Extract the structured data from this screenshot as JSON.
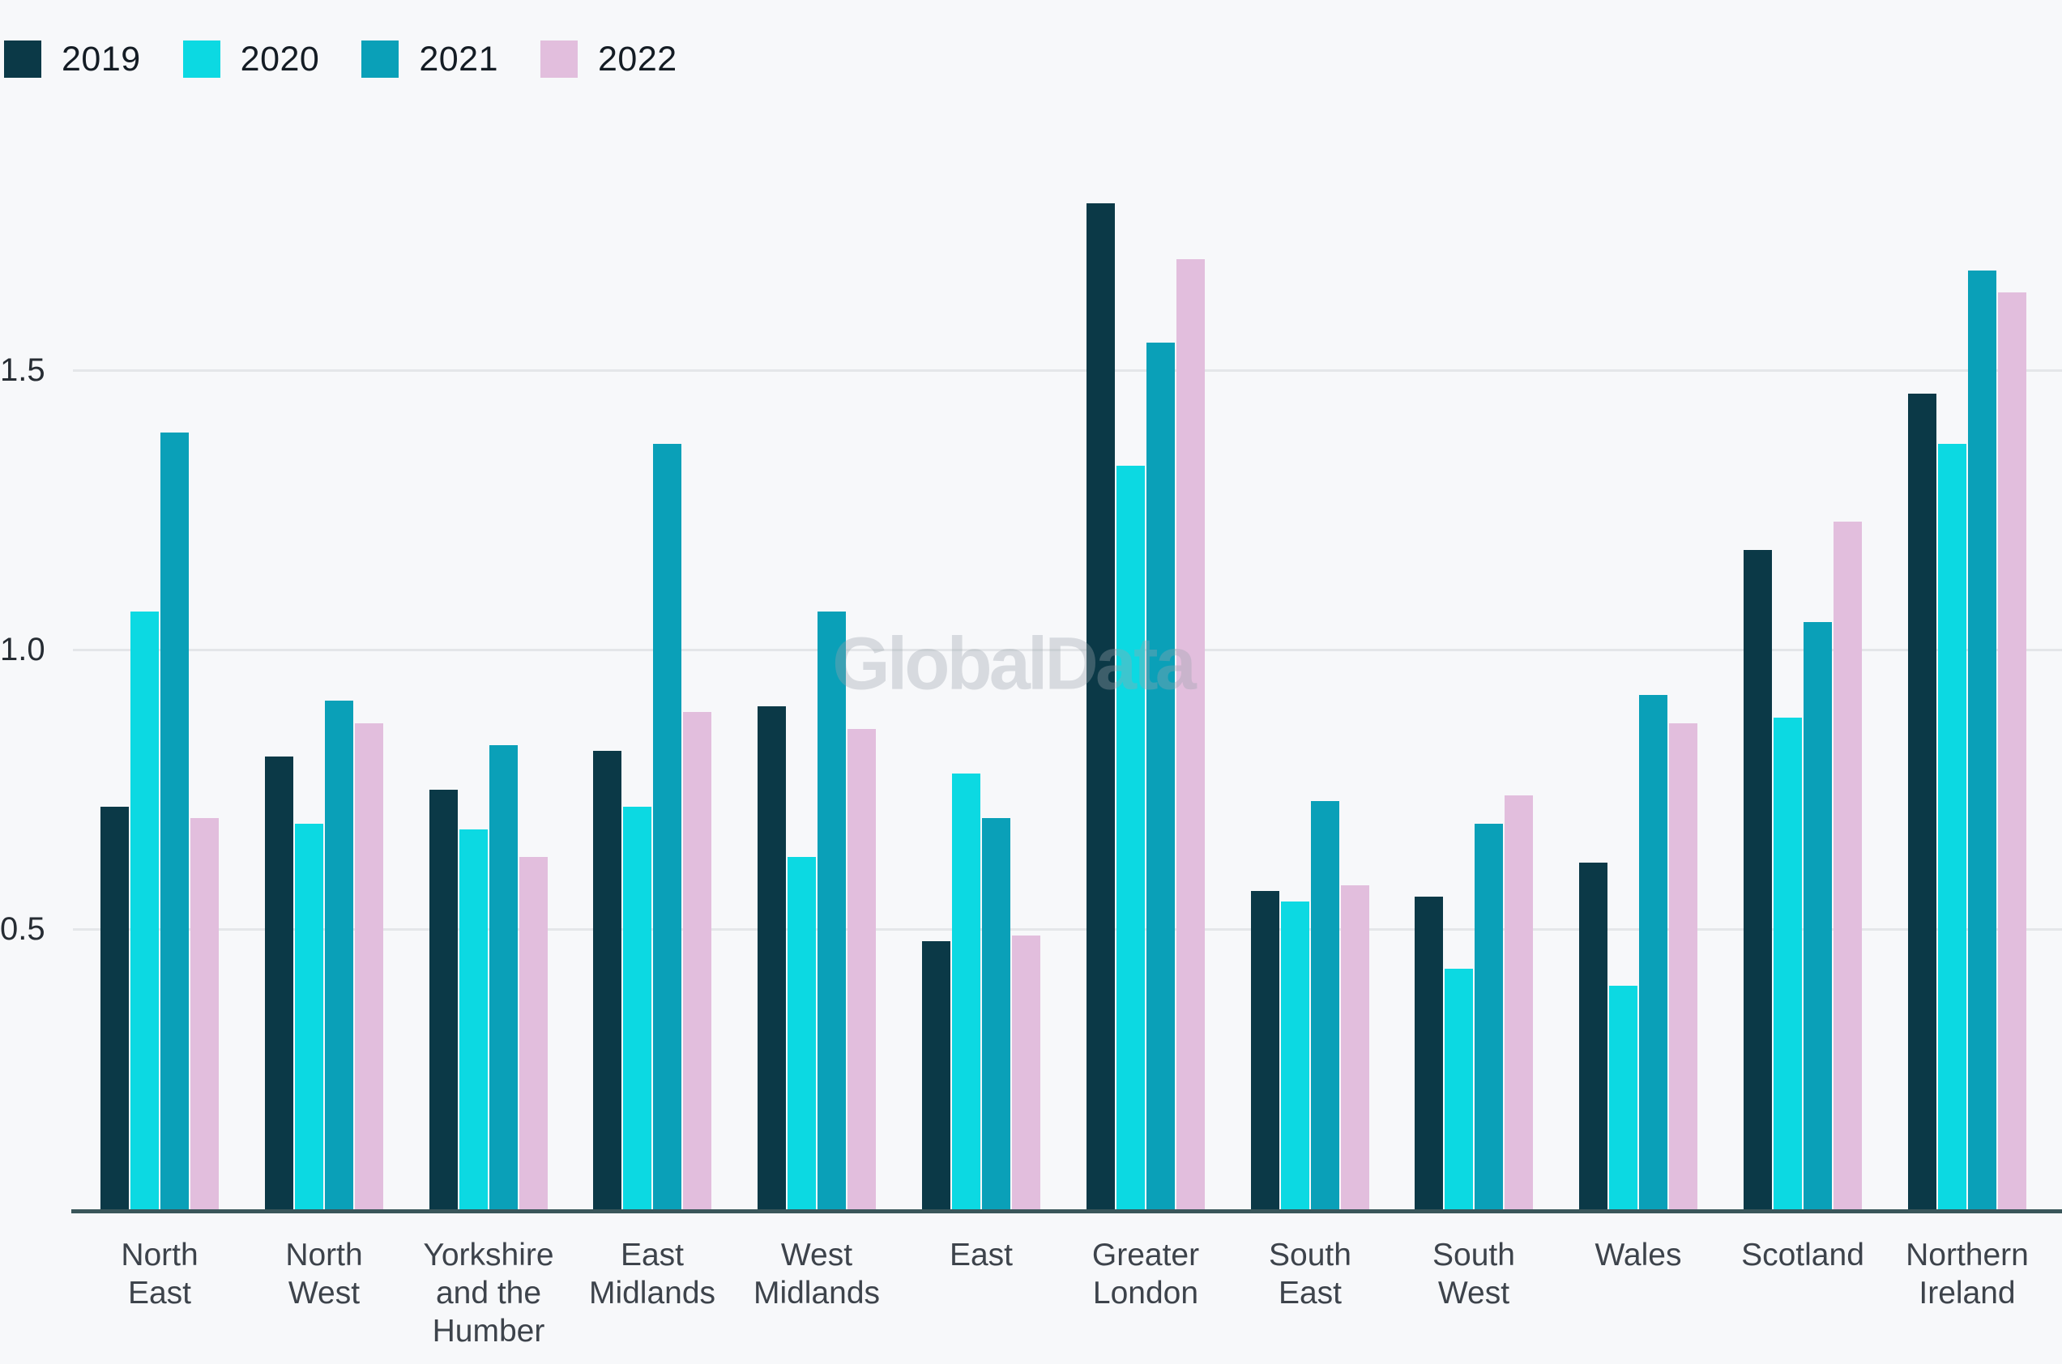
{
  "chart_data": {
    "type": "bar",
    "title": "",
    "watermark": "GlobalData",
    "grid": true,
    "legend_position": "top-left",
    "ylim": [
      0,
      1.85
    ],
    "y_ticks": [
      {
        "label": "1.5",
        "value": 1.5
      },
      {
        "label": "1.0",
        "value": 1.0
      },
      {
        "label": "0.5",
        "value": 0.5
      }
    ],
    "categories": [
      "North East",
      "North West",
      "Yorkshire and the Humber",
      "East Midlands",
      "West Midlands",
      "East",
      "Greater London",
      "South East",
      "South West",
      "Wales",
      "Scotland",
      "Northern Ireland"
    ],
    "category_labels": [
      "North\nEast",
      "North\nWest",
      "Yorkshire\nand the\nHumber",
      "East\nMidlands",
      "West\nMidlands",
      "East",
      "Greater\nLondon",
      "South\nEast",
      "South\nWest",
      "Wales",
      "Scotland",
      "Northern\nIreland"
    ],
    "series": [
      {
        "name": "2019",
        "color": "#0b3947",
        "values": [
          0.72,
          0.81,
          0.75,
          0.82,
          0.9,
          0.48,
          1.8,
          0.57,
          0.56,
          0.62,
          1.18,
          1.46
        ]
      },
      {
        "name": "2020",
        "color": "#0cd9e2",
        "values": [
          1.07,
          0.69,
          0.68,
          0.72,
          0.63,
          0.78,
          1.33,
          0.55,
          0.43,
          0.4,
          0.88,
          1.37
        ]
      },
      {
        "name": "2021",
        "color": "#0aa0b8",
        "values": [
          1.39,
          0.91,
          0.83,
          1.37,
          1.07,
          0.7,
          1.55,
          0.73,
          0.69,
          0.92,
          1.05,
          1.68
        ]
      },
      {
        "name": "2022",
        "color": "#e2bedd",
        "values": [
          0.7,
          0.87,
          0.63,
          0.89,
          0.86,
          0.49,
          1.7,
          0.58,
          0.74,
          0.87,
          1.23,
          1.64
        ]
      }
    ],
    "style": {
      "background": "#f7f8fa",
      "gridline_color": "#e4e6e9",
      "axis_line_color": "#3a565a",
      "tick_text_color": "#262c33",
      "label_text_color": "#3d434b",
      "legend_text_color": "#141c24",
      "watermark_color": "rgba(154,162,172,0.35)"
    }
  }
}
